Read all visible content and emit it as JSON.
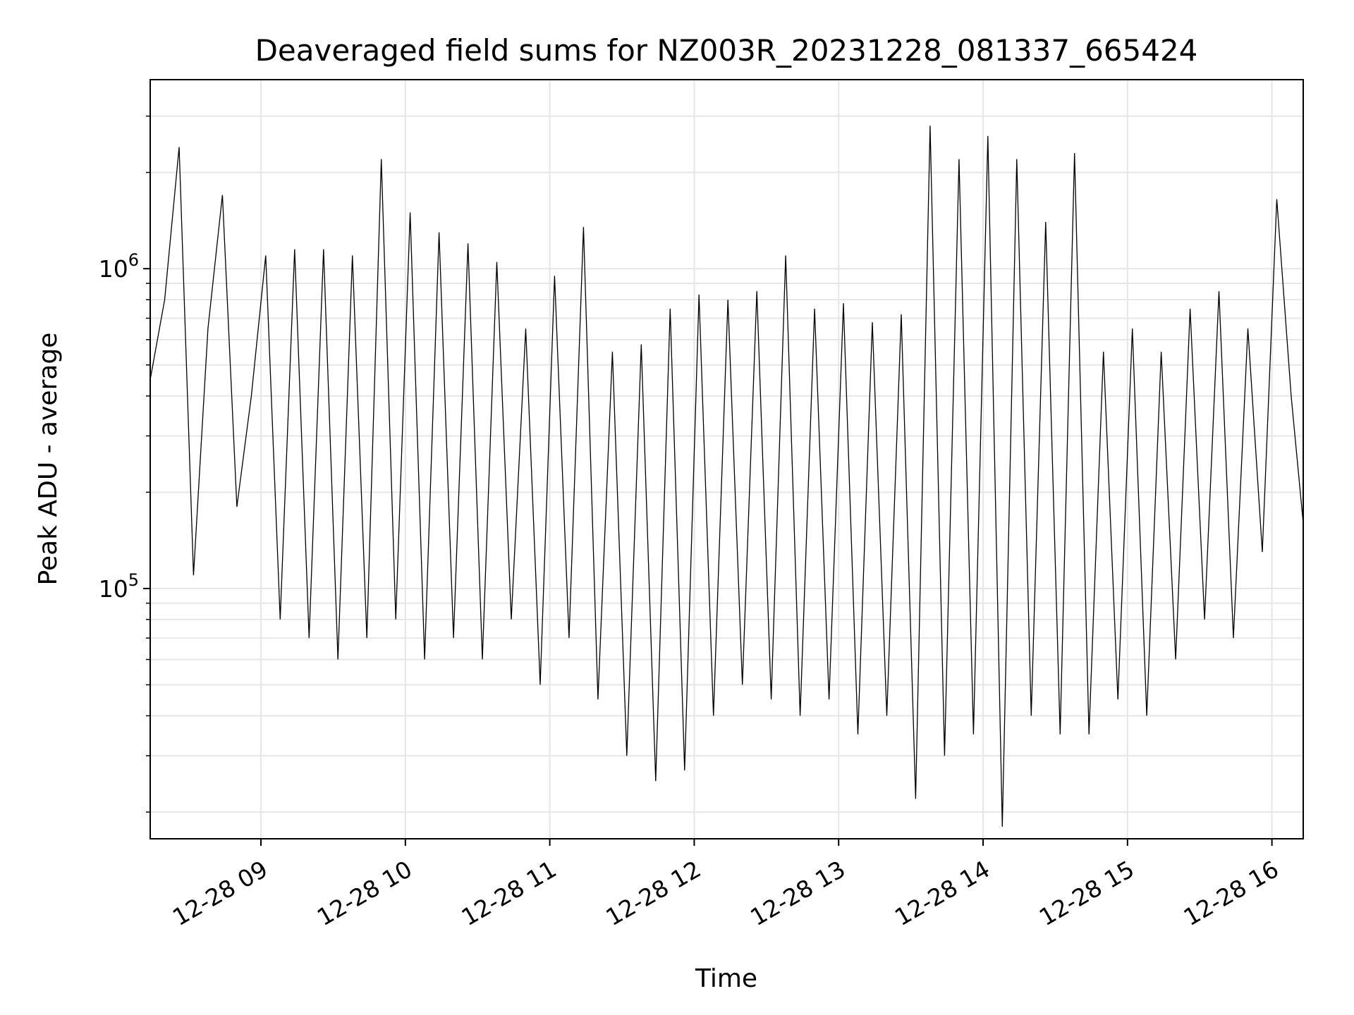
{
  "chart_data": {
    "type": "line",
    "title": "Deaveraged field sums for NZ003R_20231228_081337_665424",
    "xlabel": "Time",
    "ylabel": "Peak ADU - average",
    "yscale": "log",
    "ylim": [
      16500,
      3900000
    ],
    "xlim": [
      "12-28 08:14",
      "12-28 16:13"
    ],
    "x_tick_labels": [
      "12-28 09",
      "12-28 10",
      "12-28 11",
      "12-28 12",
      "12-28 13",
      "12-28 14",
      "12-28 15",
      "12-28 16"
    ],
    "y_tick_labels": [
      {
        "base": "10",
        "exp": "5",
        "value": 100000
      },
      {
        "base": "10",
        "exp": "6",
        "value": 1000000
      }
    ],
    "grid": true,
    "line_color": "#000000",
    "series": [
      {
        "x": [
          "12-28 08:14",
          "12-28 08:20",
          "12-28 08:26",
          "12-28 08:32",
          "12-28 08:38",
          "12-28 08:44",
          "12-28 08:50",
          "12-28 08:56",
          "12-28 09:02",
          "12-28 09:08",
          "12-28 09:14",
          "12-28 09:20",
          "12-28 09:26",
          "12-28 09:32",
          "12-28 09:38",
          "12-28 09:44",
          "12-28 09:50",
          "12-28 09:56",
          "12-28 10:02",
          "12-28 10:08",
          "12-28 10:14",
          "12-28 10:20",
          "12-28 10:26",
          "12-28 10:32",
          "12-28 10:38",
          "12-28 10:44",
          "12-28 10:50",
          "12-28 10:56",
          "12-28 11:02",
          "12-28 11:08",
          "12-28 11:14",
          "12-28 11:20",
          "12-28 11:26",
          "12-28 11:32",
          "12-28 11:38",
          "12-28 11:44",
          "12-28 11:50",
          "12-28 11:56",
          "12-28 12:02",
          "12-28 12:08",
          "12-28 12:14",
          "12-28 12:20",
          "12-28 12:26",
          "12-28 12:32",
          "12-28 12:38",
          "12-28 12:44",
          "12-28 12:50",
          "12-28 12:56",
          "12-28 13:02",
          "12-28 13:08",
          "12-28 13:14",
          "12-28 13:20",
          "12-28 13:26",
          "12-28 13:32",
          "12-28 13:38",
          "12-28 13:44",
          "12-28 13:50",
          "12-28 13:56",
          "12-28 14:02",
          "12-28 14:08",
          "12-28 14:14",
          "12-28 14:20",
          "12-28 14:26",
          "12-28 14:32",
          "12-28 14:38",
          "12-28 14:44",
          "12-28 14:50",
          "12-28 14:56",
          "12-28 15:02",
          "12-28 15:08",
          "12-28 15:14",
          "12-28 15:20",
          "12-28 15:26",
          "12-28 15:32",
          "12-28 15:38",
          "12-28 15:44",
          "12-28 15:50",
          "12-28 15:56",
          "12-28 16:02",
          "12-28 16:08",
          "12-28 16:13"
        ],
        "y": [
          450000,
          800000,
          2400000,
          110000,
          650000,
          1700000,
          180000,
          400000,
          1100000,
          80000,
          1150000,
          70000,
          1150000,
          60000,
          1100000,
          70000,
          2200000,
          80000,
          1500000,
          60000,
          1300000,
          70000,
          1200000,
          60000,
          1050000,
          80000,
          650000,
          50000,
          950000,
          70000,
          1350000,
          45000,
          550000,
          30000,
          580000,
          25000,
          750000,
          27000,
          830000,
          40000,
          800000,
          50000,
          850000,
          45000,
          1100000,
          40000,
          750000,
          45000,
          780000,
          35000,
          680000,
          40000,
          720000,
          22000,
          2800000,
          30000,
          2200000,
          35000,
          2600000,
          18000,
          2200000,
          40000,
          1400000,
          35000,
          2300000,
          35000,
          550000,
          45000,
          650000,
          40000,
          550000,
          60000,
          750000,
          80000,
          850000,
          70000,
          650000,
          130000,
          1650000,
          400000,
          160000
        ]
      }
    ]
  }
}
